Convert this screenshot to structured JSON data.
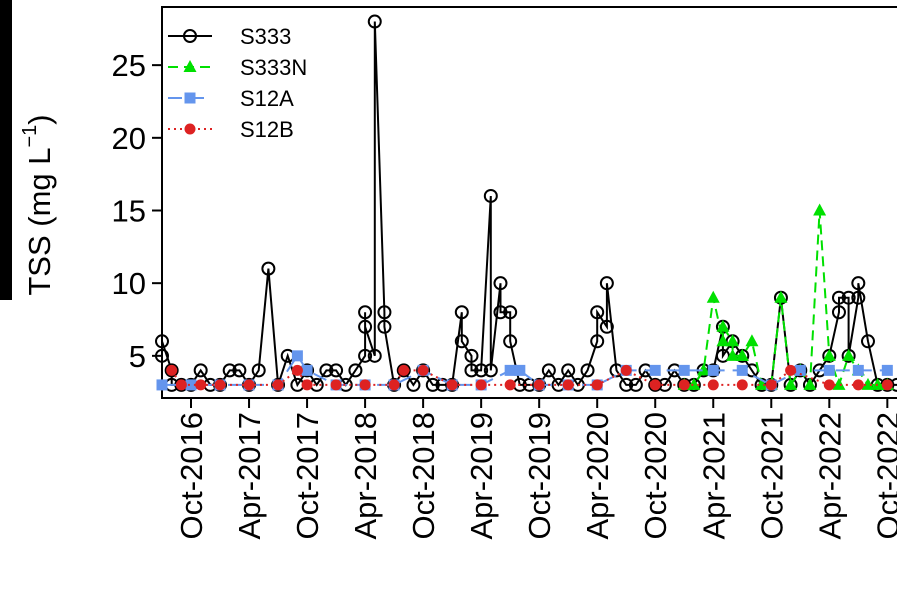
{
  "chart_data": {
    "type": "line",
    "y_label": [
      "TSS (mg L",
      "−1",
      ")"
    ],
    "xlim": [
      "2016-07",
      "2022-11"
    ],
    "xticks": [
      {
        "value": "2016-10",
        "label": "Oct-2016"
      },
      {
        "value": "2017-04",
        "label": "Apr-2017"
      },
      {
        "value": "2017-10",
        "label": "Oct-2017"
      },
      {
        "value": "2018-04",
        "label": "Apr-2018"
      },
      {
        "value": "2018-10",
        "label": "Oct-2018"
      },
      {
        "value": "2019-04",
        "label": "Apr-2019"
      },
      {
        "value": "2019-10",
        "label": "Oct-2019"
      },
      {
        "value": "2020-04",
        "label": "Apr-2020"
      },
      {
        "value": "2020-10",
        "label": "Oct-2020"
      },
      {
        "value": "2021-04",
        "label": "Apr-2021"
      },
      {
        "value": "2021-10",
        "label": "Oct-2021"
      },
      {
        "value": "2022-04",
        "label": "Apr-2022"
      },
      {
        "value": "2022-10",
        "label": "Oct-2022"
      }
    ],
    "ylim": [
      2.1,
      29
    ],
    "yticks": [
      5,
      10,
      15,
      20,
      25
    ],
    "legend": "top-left",
    "series": [
      {
        "name": "S333",
        "color": "#000000",
        "linestyle": "solid",
        "marker": "open-circle",
        "x": [
          "2016-07",
          "2016-07",
          "2016-08",
          "2016-08",
          "2016-09",
          "2016-10",
          "2016-11",
          "2016-12",
          "2017-01",
          "2017-02",
          "2017-03",
          "2017-04",
          "2017-05",
          "2017-06",
          "2017-07",
          "2017-08",
          "2017-09",
          "2017-10",
          "2017-11",
          "2017-12",
          "2018-01",
          "2018-02",
          "2018-03",
          "2018-04",
          "2018-04",
          "2018-04",
          "2018-05",
          "2018-05",
          "2018-06",
          "2018-06",
          "2018-07",
          "2018-08",
          "2018-09",
          "2018-10",
          "2018-11",
          "2018-12",
          "2019-01",
          "2019-02",
          "2019-02",
          "2019-03",
          "2019-03",
          "2019-04",
          "2019-05",
          "2019-05",
          "2019-06",
          "2019-06",
          "2019-07",
          "2019-07",
          "2019-08",
          "2019-09",
          "2019-10",
          "2019-11",
          "2019-12",
          "2020-01",
          "2020-02",
          "2020-03",
          "2020-04",
          "2020-04",
          "2020-05",
          "2020-05",
          "2020-06",
          "2020-07",
          "2020-08",
          "2020-09",
          "2020-10",
          "2020-11",
          "2020-12",
          "2021-01",
          "2021-02",
          "2021-03",
          "2021-04",
          "2021-05",
          "2021-05",
          "2021-06",
          "2021-07",
          "2021-08",
          "2021-09",
          "2021-10",
          "2021-11",
          "2021-12",
          "2022-01",
          "2022-02",
          "2022-03",
          "2022-04",
          "2022-05",
          "2022-05",
          "2022-06",
          "2022-06",
          "2022-07",
          "2022-07",
          "2022-08",
          "2022-09",
          "2022-10",
          "2022-11"
        ],
        "values": [
          5,
          6,
          4,
          3,
          3,
          3,
          4,
          3,
          3,
          4,
          4,
          3,
          4,
          11,
          3,
          5,
          3,
          4,
          3,
          4,
          4,
          3,
          4,
          5,
          8,
          7,
          5,
          28,
          8,
          7,
          3,
          4,
          3,
          4,
          3,
          3,
          3,
          8,
          6,
          5,
          4,
          4,
          16,
          4,
          10,
          8,
          8,
          6,
          3,
          3,
          3,
          4,
          3,
          4,
          3,
          4,
          6,
          8,
          7,
          10,
          4,
          3,
          3,
          4,
          3,
          3,
          4,
          3,
          3,
          4,
          4,
          7,
          5,
          6,
          5,
          4,
          3,
          3,
          9,
          3,
          4,
          3,
          4,
          5,
          8,
          9,
          9,
          5,
          9,
          10,
          6,
          3,
          3,
          3
        ]
      },
      {
        "name": "S333N",
        "color": "#00e000",
        "linestyle": "dashed",
        "marker": "triangle",
        "x": [
          "2021-01",
          "2021-02",
          "2021-03",
          "2021-04",
          "2021-05",
          "2021-05",
          "2021-06",
          "2021-06",
          "2021-07",
          "2021-07",
          "2021-08",
          "2021-09",
          "2021-10",
          "2021-11",
          "2021-12",
          "2022-01",
          "2022-02",
          "2022-03",
          "2022-04",
          "2022-05",
          "2022-06",
          "2022-07",
          "2022-08",
          "2022-09",
          "2022-10"
        ],
        "values": [
          3,
          3,
          4,
          9,
          6,
          7,
          6,
          5,
          5,
          5,
          6,
          3,
          3,
          9,
          3,
          4,
          3,
          15,
          5,
          3,
          5,
          4,
          3,
          3,
          3
        ]
      },
      {
        "name": "S12A",
        "color": "#6495ed",
        "linestyle": "longdash",
        "marker": "square",
        "x": [
          "2016-07",
          "2016-10",
          "2017-01",
          "2017-04",
          "2017-07",
          "2017-09",
          "2017-10",
          "2018-01",
          "2018-04",
          "2018-07",
          "2018-10",
          "2019-01",
          "2019-04",
          "2019-07",
          "2019-08",
          "2019-10",
          "2020-01",
          "2020-04",
          "2020-07",
          "2020-10",
          "2021-01",
          "2021-04",
          "2021-07",
          "2021-10",
          "2022-01",
          "2022-04",
          "2022-07",
          "2022-10"
        ],
        "values": [
          3,
          3,
          3,
          3,
          3,
          5,
          4,
          3,
          3,
          3,
          4,
          3,
          3,
          4,
          4,
          3,
          3,
          3,
          4,
          4,
          4,
          4,
          4,
          3,
          4,
          4,
          4,
          4
        ]
      },
      {
        "name": "S12B",
        "color": "#dd2222",
        "linestyle": "dotted",
        "marker": "circle",
        "x": [
          "2016-08",
          "2016-09",
          "2016-11",
          "2017-01",
          "2017-04",
          "2017-07",
          "2017-09",
          "2017-10",
          "2018-01",
          "2018-04",
          "2018-07",
          "2018-08",
          "2018-10",
          "2019-01",
          "2019-04",
          "2019-07",
          "2019-10",
          "2020-01",
          "2020-04",
          "2020-07",
          "2020-10",
          "2021-01",
          "2021-04",
          "2021-07",
          "2021-10",
          "2021-12",
          "2022-04",
          "2022-07",
          "2022-10"
        ],
        "values": [
          4,
          3,
          3,
          3,
          3,
          3,
          4,
          3,
          3,
          3,
          3,
          4,
          4,
          3,
          3,
          3,
          3,
          3,
          3,
          4,
          3,
          3,
          3,
          3,
          3,
          4,
          3,
          3,
          3
        ]
      }
    ]
  }
}
